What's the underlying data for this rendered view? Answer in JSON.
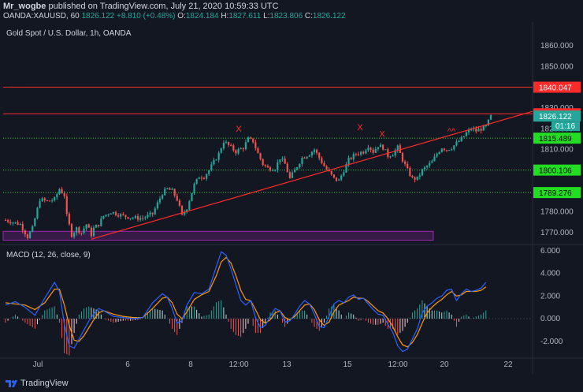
{
  "header": {
    "publisher": "Mr_wogbe",
    "published_text": "published on TradingView.com, July 21, 2020 10:59:33 UTC",
    "symbol": "OANDA:XAUUSD, 60",
    "last": "1826.122",
    "change": "+8.810 (+0.48%)",
    "o_label": "O:",
    "o_value": "1824.184",
    "h_label": "H:",
    "h_value": "1827.611",
    "l_label": "L:",
    "l_value": "1823.806",
    "c_label": "C:",
    "c_value": "1826.122"
  },
  "footer": {
    "brand": "TradingView"
  },
  "colors": {
    "background": "#131722",
    "up": "#26a69a",
    "down": "#ef5350",
    "trendline": "#ff2a2a",
    "resistance": "#ff2a2a",
    "support": "#3bd43b",
    "macd": "#2962ff",
    "signal": "#ff9800",
    "box": "#9c27b0"
  },
  "chart_data": [
    {
      "type": "candlestick",
      "title": "Gold Spot / U.S. Dollar, 1h, OANDA",
      "ylim": [
        1765,
        1868
      ],
      "y_ticks": [
        "1860.000",
        "1850.000",
        "1840.000",
        "1830.000",
        "1820.000",
        "1810.000",
        "1800.000",
        "1790.000",
        "1780.000",
        "1770.000"
      ],
      "x_ticks": [
        "Jul",
        "6",
        "8",
        "12:00",
        "13",
        "15",
        "12:00",
        "20",
        "22"
      ],
      "price_labels": [
        {
          "value": 1840.047,
          "text": "1840.047",
          "kind": "resistance"
        },
        {
          "value": 1827.231,
          "text": "1827.231",
          "kind": "resistance"
        },
        {
          "value": 1826.122,
          "text": "1826.122",
          "kind": "last"
        },
        {
          "value": 1815.489,
          "text": "1815.489",
          "kind": "support"
        },
        {
          "value": 1800.106,
          "text": "1800.106",
          "kind": "support"
        },
        {
          "value": 1789.276,
          "text": "1789.276",
          "kind": "support"
        }
      ],
      "countdown": "01:16",
      "annotations": [
        "X",
        "X",
        "X",
        "^^"
      ],
      "close_path": [
        [
          0,
          1776
        ],
        [
          6,
          1774
        ],
        [
          9,
          1768
        ],
        [
          11,
          1772
        ],
        [
          14,
          1786
        ],
        [
          17,
          1785
        ],
        [
          20,
          1786
        ],
        [
          22,
          1791
        ],
        [
          24,
          1788
        ],
        [
          25,
          1778
        ],
        [
          27,
          1769
        ],
        [
          29,
          1772
        ],
        [
          31,
          1770
        ],
        [
          33,
          1774
        ],
        [
          35,
          1769
        ],
        [
          36,
          1772
        ],
        [
          38,
          1774
        ],
        [
          40,
          1778
        ],
        [
          43,
          1780
        ],
        [
          48,
          1778
        ],
        [
          53,
          1777
        ],
        [
          56,
          1777
        ],
        [
          60,
          1779
        ],
        [
          62,
          1784
        ],
        [
          64,
          1789
        ],
        [
          66,
          1791
        ],
        [
          68,
          1790
        ],
        [
          70,
          1786
        ],
        [
          72,
          1778
        ],
        [
          74,
          1782
        ],
        [
          77,
          1793
        ],
        [
          79,
          1797
        ],
        [
          81,
          1797
        ],
        [
          83,
          1800
        ],
        [
          85,
          1804
        ],
        [
          87,
          1808
        ],
        [
          89,
          1814
        ],
        [
          91,
          1812
        ],
        [
          94,
          1809
        ],
        [
          97,
          1811
        ],
        [
          99,
          1815
        ],
        [
          101,
          1814
        ],
        [
          103,
          1808
        ],
        [
          105,
          1803
        ],
        [
          107,
          1801
        ],
        [
          110,
          1801
        ],
        [
          112,
          1806
        ],
        [
          114,
          1803
        ],
        [
          116,
          1796
        ],
        [
          118,
          1800
        ],
        [
          121,
          1806
        ],
        [
          124,
          1808
        ],
        [
          126,
          1810
        ],
        [
          128,
          1806
        ],
        [
          130,
          1802
        ],
        [
          132,
          1799
        ],
        [
          134,
          1796
        ],
        [
          136,
          1795
        ],
        [
          138,
          1800
        ],
        [
          140,
          1805
        ],
        [
          143,
          1808
        ],
        [
          146,
          1809
        ],
        [
          148,
          1812
        ],
        [
          150,
          1809
        ],
        [
          152,
          1812
        ],
        [
          154,
          1811
        ],
        [
          156,
          1807
        ],
        [
          158,
          1808
        ],
        [
          160,
          1811
        ],
        [
          162,
          1805
        ],
        [
          164,
          1800
        ],
        [
          166,
          1796
        ],
        [
          168,
          1796
        ],
        [
          170,
          1800
        ],
        [
          172,
          1802
        ],
        [
          174,
          1804
        ],
        [
          176,
          1808
        ],
        [
          178,
          1811
        ],
        [
          180,
          1810
        ],
        [
          182,
          1811
        ],
        [
          184,
          1813
        ],
        [
          186,
          1815
        ],
        [
          188,
          1818
        ],
        [
          190,
          1820
        ],
        [
          192,
          1819
        ],
        [
          194,
          1820
        ],
        [
          196,
          1821
        ],
        [
          198,
          1826
        ]
      ]
    },
    {
      "type": "line",
      "title": "MACD (12, 26, close, 9)",
      "ylim": [
        -3.2,
        6.4
      ],
      "y_ticks": [
        "6.000",
        "4.000",
        "2.000",
        "0.000",
        "-2.000"
      ],
      "series": [
        {
          "name": "MACD",
          "values": [
            [
              0,
              1.2
            ],
            [
              4,
              1.5
            ],
            [
              8,
              1.0
            ],
            [
              12,
              0.3
            ],
            [
              16,
              1.8
            ],
            [
              20,
              3.2
            ],
            [
              22,
              2.4
            ],
            [
              24,
              -0.5
            ],
            [
              26,
              -2.4
            ],
            [
              28,
              -2.6
            ],
            [
              30,
              -1.8
            ],
            [
              32,
              -1.0
            ],
            [
              34,
              -0.2
            ],
            [
              36,
              0.4
            ],
            [
              38,
              0.9
            ],
            [
              40,
              0.7
            ],
            [
              44,
              0.2
            ],
            [
              48,
              0.1
            ],
            [
              52,
              0.0
            ],
            [
              56,
              0.1
            ],
            [
              60,
              1.4
            ],
            [
              64,
              2.2
            ],
            [
              66,
              1.9
            ],
            [
              68,
              0.9
            ],
            [
              70,
              -0.4
            ],
            [
              72,
              -0.2
            ],
            [
              74,
              1.2
            ],
            [
              77,
              2.3
            ],
            [
              80,
              2.2
            ],
            [
              83,
              2.6
            ],
            [
              86,
              4.6
            ],
            [
              88,
              5.9
            ],
            [
              90,
              5.6
            ],
            [
              92,
              4.4
            ],
            [
              94,
              3.0
            ],
            [
              96,
              1.6
            ],
            [
              98,
              1.2
            ],
            [
              100,
              1.6
            ],
            [
              102,
              0.1
            ],
            [
              104,
              -0.8
            ],
            [
              106,
              -0.6
            ],
            [
              108,
              0.2
            ],
            [
              110,
              0.9
            ],
            [
              112,
              0.7
            ],
            [
              114,
              -0.3
            ],
            [
              116,
              -0.2
            ],
            [
              118,
              0.4
            ],
            [
              120,
              1.1
            ],
            [
              122,
              1.6
            ],
            [
              124,
              1.3
            ],
            [
              126,
              0.4
            ],
            [
              128,
              -0.7
            ],
            [
              130,
              -0.8
            ],
            [
              132,
              0.2
            ],
            [
              134,
              1.3
            ],
            [
              136,
              1.6
            ],
            [
              138,
              1.4
            ],
            [
              140,
              1.9
            ],
            [
              142,
              2.1
            ],
            [
              144,
              1.7
            ],
            [
              146,
              1.8
            ],
            [
              148,
              1.3
            ],
            [
              150,
              0.8
            ],
            [
              152,
              0.4
            ],
            [
              154,
              0.3
            ],
            [
              156,
              -0.5
            ],
            [
              158,
              -1.2
            ],
            [
              160,
              -2.4
            ],
            [
              162,
              -2.9
            ],
            [
              164,
              -2.7
            ],
            [
              166,
              -1.8
            ],
            [
              168,
              -0.9
            ],
            [
              170,
              0.5
            ],
            [
              172,
              1.1
            ],
            [
              174,
              1.4
            ],
            [
              176,
              1.8
            ],
            [
              178,
              2.0
            ],
            [
              180,
              2.5
            ],
            [
              182,
              2.6
            ],
            [
              184,
              1.6
            ],
            [
              186,
              2.2
            ],
            [
              188,
              2.6
            ],
            [
              190,
              2.4
            ],
            [
              192,
              2.5
            ],
            [
              194,
              2.7
            ],
            [
              196,
              3.2
            ]
          ]
        },
        {
          "name": "Signal",
          "values": [
            [
              0,
              1.4
            ],
            [
              4,
              1.3
            ],
            [
              8,
              1.2
            ],
            [
              12,
              0.8
            ],
            [
              16,
              1.4
            ],
            [
              20,
              2.6
            ],
            [
              22,
              2.6
            ],
            [
              24,
              1.2
            ],
            [
              26,
              -0.6
            ],
            [
              28,
              -1.9
            ],
            [
              30,
              -2.0
            ],
            [
              32,
              -1.5
            ],
            [
              34,
              -0.8
            ],
            [
              36,
              -0.1
            ],
            [
              38,
              0.5
            ],
            [
              40,
              0.7
            ],
            [
              44,
              0.4
            ],
            [
              48,
              0.2
            ],
            [
              52,
              0.1
            ],
            [
              56,
              0.1
            ],
            [
              60,
              0.9
            ],
            [
              64,
              1.8
            ],
            [
              66,
              1.9
            ],
            [
              68,
              1.4
            ],
            [
              70,
              0.4
            ],
            [
              72,
              0.0
            ],
            [
              74,
              0.6
            ],
            [
              77,
              1.7
            ],
            [
              80,
              2.1
            ],
            [
              83,
              2.4
            ],
            [
              86,
              3.8
            ],
            [
              88,
              5.0
            ],
            [
              90,
              5.4
            ],
            [
              92,
              4.9
            ],
            [
              94,
              3.8
            ],
            [
              96,
              2.5
            ],
            [
              98,
              1.7
            ],
            [
              100,
              1.6
            ],
            [
              102,
              0.8
            ],
            [
              104,
              -0.1
            ],
            [
              106,
              -0.4
            ],
            [
              108,
              -0.1
            ],
            [
              110,
              0.5
            ],
            [
              112,
              0.7
            ],
            [
              114,
              0.1
            ],
            [
              116,
              -0.1
            ],
            [
              118,
              0.2
            ],
            [
              120,
              0.7
            ],
            [
              122,
              1.2
            ],
            [
              124,
              1.3
            ],
            [
              126,
              0.8
            ],
            [
              128,
              -0.1
            ],
            [
              130,
              -0.6
            ],
            [
              132,
              -0.3
            ],
            [
              134,
              0.6
            ],
            [
              136,
              1.2
            ],
            [
              138,
              1.4
            ],
            [
              140,
              1.6
            ],
            [
              142,
              1.9
            ],
            [
              144,
              1.8
            ],
            [
              146,
              1.8
            ],
            [
              148,
              1.5
            ],
            [
              150,
              1.1
            ],
            [
              152,
              0.7
            ],
            [
              154,
              0.5
            ],
            [
              156,
              0.0
            ],
            [
              158,
              -0.7
            ],
            [
              160,
              -1.6
            ],
            [
              162,
              -2.3
            ],
            [
              164,
              -2.5
            ],
            [
              166,
              -2.1
            ],
            [
              168,
              -1.4
            ],
            [
              170,
              -0.4
            ],
            [
              172,
              0.5
            ],
            [
              174,
              1.0
            ],
            [
              176,
              1.4
            ],
            [
              178,
              1.7
            ],
            [
              180,
              2.1
            ],
            [
              182,
              2.4
            ],
            [
              184,
              2.0
            ],
            [
              186,
              2.1
            ],
            [
              188,
              2.4
            ],
            [
              190,
              2.4
            ],
            [
              192,
              2.4
            ],
            [
              194,
              2.5
            ],
            [
              196,
              2.8
            ]
          ]
        }
      ]
    }
  ]
}
